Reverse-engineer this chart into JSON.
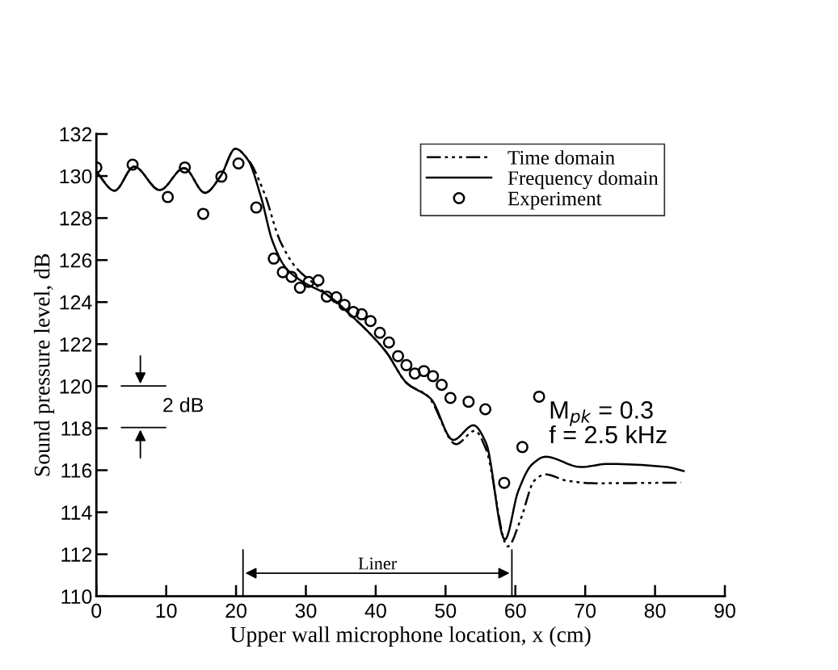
{
  "chart_data": {
    "type": "line",
    "xlabel": "Upper wall microphone location, x (cm)",
    "ylabel": "Sound pressure level, dB",
    "xlim": [
      0,
      90
    ],
    "xticks": [
      0,
      10,
      20,
      30,
      40,
      50,
      60,
      70,
      80,
      90
    ],
    "ylim": [
      110,
      132
    ],
    "yticks": [
      110,
      112,
      114,
      116,
      118,
      120,
      122,
      124,
      126,
      128,
      130,
      132
    ],
    "grid": false,
    "legend": "top right",
    "series": [
      {
        "name": "Time domain",
        "color": "#000000",
        "line_style": "dashed",
        "x": [
          0,
          2.6,
          5.4,
          9.07,
          12.56,
          15.55,
          17.8,
          19.9,
          21.7,
          24.0,
          26.3,
          28.6,
          31.7,
          33.0,
          36.8,
          41.4,
          44.5,
          47.6,
          48.0,
          51.5,
          54.2,
          55.8,
          58.9,
          60.8,
          62.7,
          64.3,
          67.4,
          71.3,
          83.7
        ],
        "values": [
          130.2,
          129.3,
          130.45,
          129.33,
          130.38,
          129.2,
          130.0,
          131.3,
          130.8,
          129.23,
          126.92,
          125.64,
          124.74,
          124.36,
          123.27,
          121.67,
          120.13,
          119.49,
          119.3,
          117.24,
          117.88,
          117.0,
          112.37,
          113.7,
          115.5,
          115.8,
          115.5,
          115.38,
          115.41
        ]
      },
      {
        "name": "Frequency domain",
        "color": "#000000",
        "line_style": "solid",
        "x": [
          0,
          2.6,
          5.4,
          9.07,
          12.56,
          15.55,
          17.8,
          19.9,
          21.7,
          23.6,
          25.2,
          27.1,
          29.4,
          33.0,
          36.8,
          41.4,
          44.5,
          47.6,
          48.0,
          51.1,
          54.0,
          55.8,
          58.5,
          60.4,
          62.4,
          64.3,
          69.4,
          73.2,
          81.7,
          84.1
        ],
        "values": [
          130.2,
          129.3,
          130.45,
          129.33,
          130.38,
          129.2,
          130.0,
          131.3,
          130.77,
          128.97,
          126.92,
          125.64,
          125.0,
          124.36,
          123.27,
          121.67,
          120.13,
          119.49,
          119.36,
          117.44,
          118.14,
          117.3,
          112.7,
          115.0,
          116.28,
          116.64,
          116.15,
          116.3,
          116.15,
          115.96
        ]
      },
      {
        "name": "Experiment",
        "type": "scatter",
        "color": "#000000",
        "marker": "circle",
        "x": [
          0,
          5.19,
          10.23,
          12.67,
          15.3,
          17.9,
          20.35,
          22.9,
          25.4,
          26.7,
          27.95,
          29.15,
          30.4,
          31.8,
          33.0,
          34.36,
          35.53,
          36.8,
          38.0,
          39.26,
          40.6,
          41.9,
          43.2,
          44.4,
          45.6,
          46.9,
          48.2,
          49.45,
          50.7,
          53.3,
          55.7,
          58.4,
          61.0,
          63.4
        ],
        "values": [
          130.41,
          130.54,
          129.0,
          130.41,
          128.2,
          129.97,
          130.6,
          128.5,
          126.07,
          125.42,
          125.2,
          124.68,
          124.96,
          125.04,
          124.26,
          124.23,
          123.87,
          123.53,
          123.42,
          123.1,
          122.54,
          122.08,
          121.43,
          121.0,
          120.6,
          120.72,
          120.48,
          120.06,
          119.44,
          119.26,
          118.9,
          115.4,
          117.1,
          119.5
        ]
      }
    ],
    "ref_lines": [
      {
        "axis": "x",
        "value": 21
      },
      {
        "axis": "x",
        "value": 59.5
      }
    ],
    "annotations": [
      "Liner",
      "2 dB",
      "M$_{pk}$ = 0.3",
      "f = 2.5 kHz"
    ]
  }
}
